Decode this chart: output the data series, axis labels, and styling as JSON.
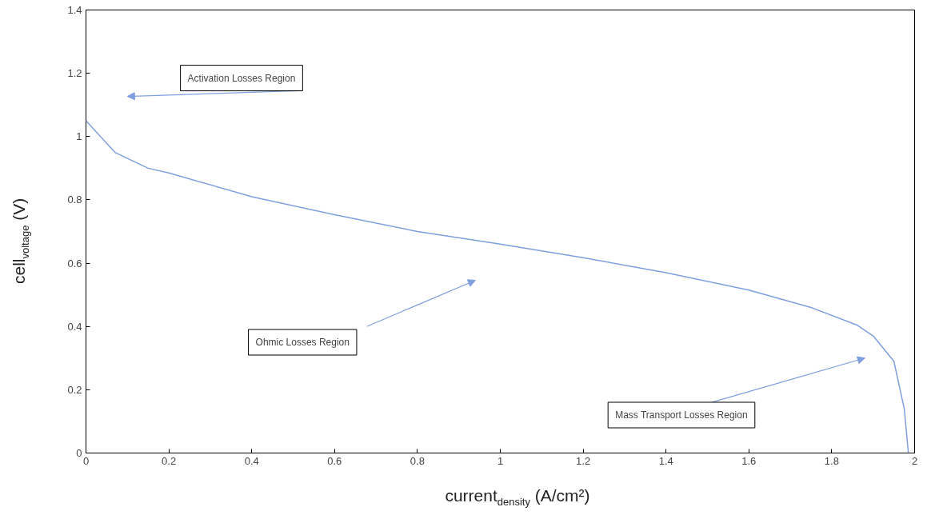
{
  "chart_data": {
    "type": "line",
    "xlabel": "current$_{density}$ (A/cm²)",
    "ylabel": "cell$_{voltage}$ (V)",
    "xlim": [
      0,
      2
    ],
    "ylim": [
      0,
      1.4
    ],
    "xticks": [
      0,
      0.2,
      0.4,
      0.6,
      0.8,
      1,
      1.2,
      1.4,
      1.6,
      1.8,
      2
    ],
    "yticks": [
      0,
      0.2,
      0.4,
      0.6,
      0.8,
      1,
      1.2,
      1.4
    ],
    "grid": false,
    "marker": "none",
    "line_style": "solid",
    "x": [
      0,
      0.07,
      0.15,
      0.2,
      0.4,
      0.6,
      0.8,
      1.0,
      1.2,
      1.4,
      1.6,
      1.75,
      1.86,
      1.9,
      1.95,
      1.975,
      1.985
    ],
    "series": [
      {
        "color": "#7f9fdf",
        "values": [
          1.05,
          0.95,
          0.9,
          0.885,
          0.81,
          0.753,
          0.7,
          0.66,
          0.617,
          0.57,
          0.515,
          0.46,
          0.405,
          0.37,
          0.29,
          0.14,
          0
        ]
      }
    ],
    "annotations": [
      "Activation Losses Region",
      "Ohmic Losses Region",
      "Mass Transport Losses Region"
    ]
  }
}
